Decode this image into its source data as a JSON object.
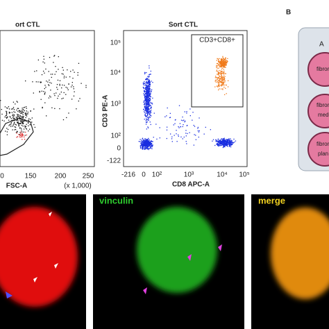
{
  "panels": {
    "left_plot": {
      "title": "ort CTL",
      "x_label": "FSC-A",
      "x_unit": "(x 1,000)",
      "x_ticks": [
        "0",
        "150",
        "200",
        "250"
      ]
    },
    "right_plot": {
      "title": "Sort CTL",
      "gate_label": "CD3+CD8+",
      "y_label": "CD3 PE-A",
      "x_label": "CD8 APC-A",
      "y_ticks": [
        "10⁵",
        "10⁴",
        "10³",
        "10²",
        "0",
        "-122"
      ],
      "x_ticks": [
        "-216",
        "0",
        "10²",
        "10³",
        "10⁴",
        "10⁵"
      ]
    },
    "panel_b": {
      "letter": "B",
      "dish_label": "A",
      "wells": [
        "fibron",
        "fibron",
        "medi",
        "fibron",
        "plan"
      ]
    },
    "images": {
      "green_label": "vinculin",
      "merge_label": "merge"
    }
  }
}
